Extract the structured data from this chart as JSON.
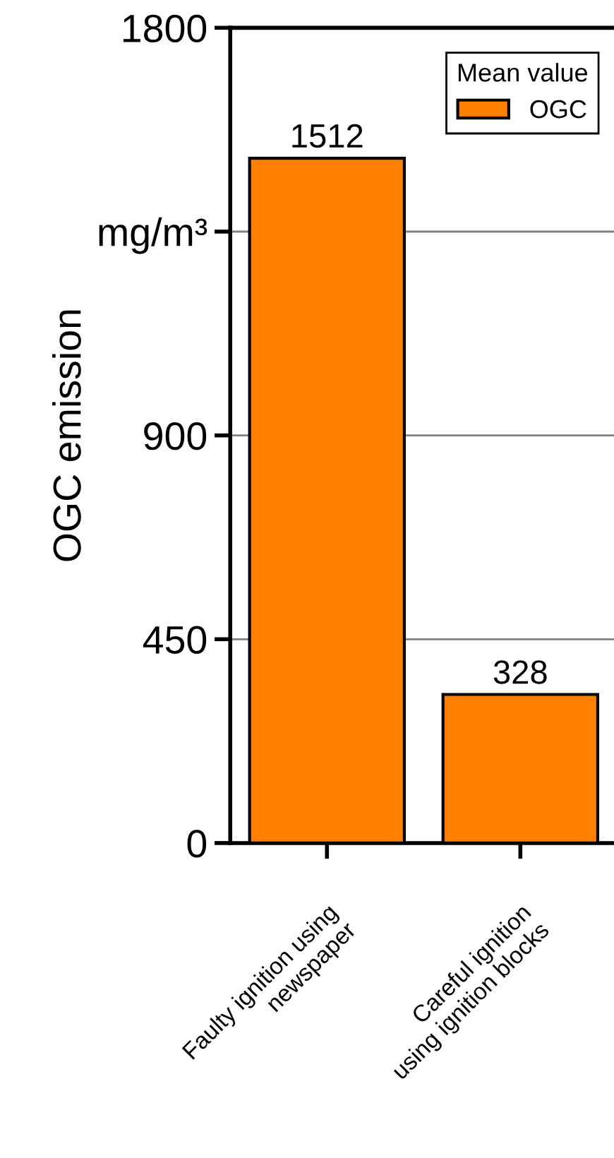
{
  "chart_data": {
    "type": "bar",
    "ylabel": "OGC emission",
    "legend_title": "Mean value",
    "categories": [
      "Faulty ignition using\nnewspaper",
      "Careful ignition\nusing ignition blocks"
    ],
    "series": [
      {
        "name": "OGC",
        "color": "#ff8000",
        "values": [
          1512,
          328
        ]
      }
    ],
    "data_labels": true,
    "ylim": [
      0,
      1800
    ],
    "yticks": [
      0,
      450,
      900,
      {
        "value": 1350,
        "label": "mg/m³"
      },
      1800
    ],
    "grid": "y",
    "legend": "top right"
  }
}
